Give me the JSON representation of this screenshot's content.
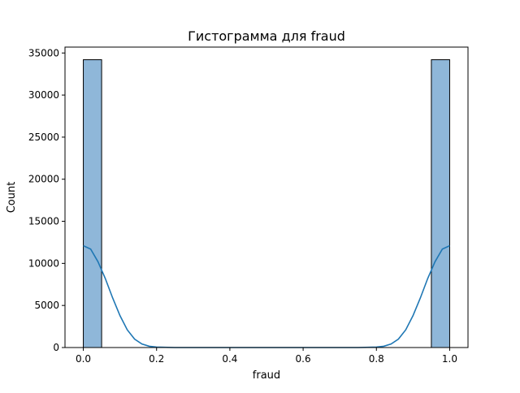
{
  "chart_data": {
    "type": "bar",
    "title": "Гистограмма для fraud",
    "xlabel": "fraud",
    "ylabel": "Count",
    "xlim": [
      -0.05,
      1.05
    ],
    "ylim": [
      0,
      35700
    ],
    "xticks": [
      0.0,
      0.2,
      0.4,
      0.6,
      0.8,
      1.0
    ],
    "xtick_labels": [
      "0.0",
      "0.2",
      "0.4",
      "0.6",
      "0.8",
      "1.0"
    ],
    "yticks": [
      0,
      5000,
      10000,
      15000,
      20000,
      25000,
      30000,
      35000
    ],
    "ytick_labels": [
      "0",
      "5000",
      "10000",
      "15000",
      "20000",
      "25000",
      "30000",
      "35000"
    ],
    "grid": false,
    "bins": [
      {
        "x0": 0.0,
        "x1": 0.05,
        "count": 34200
      },
      {
        "x0": 0.95,
        "x1": 1.0,
        "count": 34200
      }
    ],
    "kde": {
      "x": [
        0.0,
        0.02,
        0.04,
        0.06,
        0.08,
        0.1,
        0.12,
        0.14,
        0.16,
        0.18,
        0.2,
        0.25,
        0.3,
        0.35,
        0.4,
        0.45,
        0.5,
        0.55,
        0.6,
        0.65,
        0.7,
        0.75,
        0.8,
        0.82,
        0.84,
        0.86,
        0.88,
        0.9,
        0.92,
        0.94,
        0.96,
        0.98,
        1.0
      ],
      "y": [
        12100,
        11700,
        10200,
        8200,
        5900,
        3800,
        2100,
        1000,
        420,
        150,
        50,
        0,
        0,
        0,
        0,
        0,
        0,
        0,
        0,
        0,
        0,
        0,
        50,
        150,
        420,
        1000,
        2100,
        3800,
        5900,
        8200,
        10200,
        11700,
        12100
      ]
    },
    "colors": {
      "bar_fill": "#8fb7d9",
      "bar_edge": "#000000",
      "kde_line": "#1f77b4"
    }
  }
}
